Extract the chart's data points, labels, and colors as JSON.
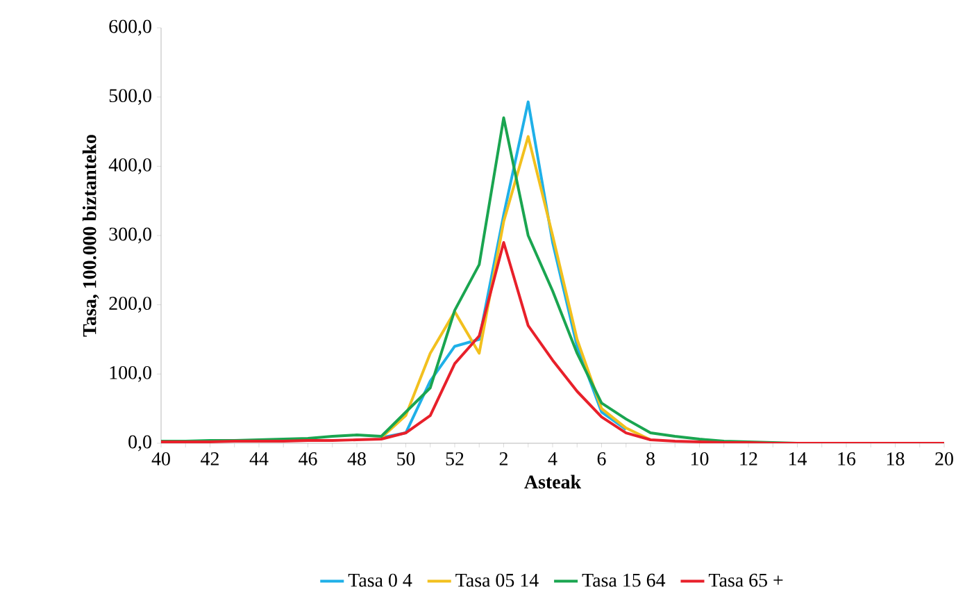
{
  "chart_data": {
    "type": "line",
    "xlabel": "Asteak",
    "ylabel": "Tasa, 100.000 biztanteko",
    "categories": [
      "40",
      null,
      "42",
      null,
      "44",
      null,
      "46",
      null,
      "48",
      null,
      "50",
      null,
      "52",
      null,
      "2",
      null,
      "4",
      null,
      "6",
      null,
      "8",
      null,
      "10",
      null,
      "12",
      null,
      "14",
      null,
      "16",
      null,
      "18",
      null,
      "20"
    ],
    "ylim": [
      0,
      600
    ],
    "yticks": [
      {
        "value": 0,
        "label": "0,0"
      },
      {
        "value": 100,
        "label": "100,0"
      },
      {
        "value": 200,
        "label": "200,0"
      },
      {
        "value": 300,
        "label": "300,0"
      },
      {
        "value": 400,
        "label": "400,0"
      },
      {
        "value": 500,
        "label": "500,0"
      },
      {
        "value": 600,
        "label": "600,0"
      }
    ],
    "legend": "bottom",
    "marker": "none",
    "line_style": "solid",
    "series": [
      {
        "name": "Tasa 0 4",
        "color": "#1fb0e8",
        "values": [
          null,
          null,
          null,
          null,
          null,
          null,
          null,
          null,
          null,
          8,
          15,
          90,
          140,
          150,
          330,
          493,
          290,
          140,
          45,
          20,
          null,
          null,
          null,
          null,
          null,
          null,
          null,
          null,
          null,
          null,
          null,
          null,
          null
        ]
      },
      {
        "name": "Tasa 05 14",
        "color": "#f2c01e",
        "values": [
          null,
          null,
          null,
          null,
          null,
          null,
          null,
          null,
          null,
          8,
          40,
          130,
          190,
          130,
          320,
          443,
          300,
          150,
          50,
          22,
          5,
          null,
          null,
          null,
          null,
          null,
          null,
          null,
          null,
          null,
          null,
          null,
          null
        ]
      },
      {
        "name": "Tasa 15 64",
        "color": "#1aa550",
        "values": [
          3,
          3,
          4,
          4,
          5,
          6,
          7,
          10,
          12,
          10,
          45,
          80,
          192,
          258,
          470,
          300,
          220,
          130,
          58,
          35,
          15,
          10,
          6,
          3,
          2,
          1,
          0,
          0,
          null,
          null,
          null,
          null,
          null
        ]
      },
      {
        "name": "Tasa 65 +",
        "color": "#e8202a",
        "values": [
          2,
          2,
          2,
          3,
          3,
          3,
          4,
          4,
          5,
          6,
          15,
          40,
          115,
          155,
          290,
          170,
          120,
          75,
          38,
          15,
          5,
          3,
          2,
          1,
          1,
          0,
          0,
          0,
          0,
          0,
          0,
          0,
          0
        ]
      }
    ]
  }
}
